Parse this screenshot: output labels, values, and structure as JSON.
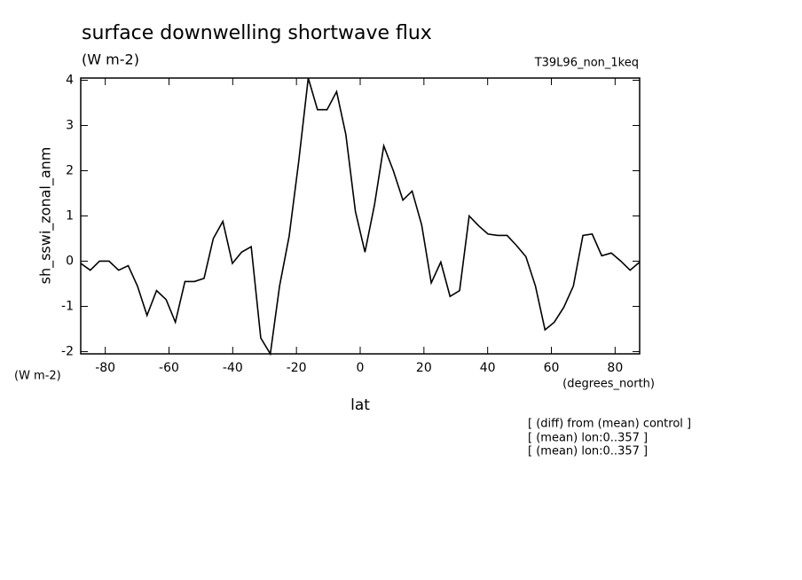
{
  "chart_data": {
    "type": "line",
    "title": "surface downwelling shortwave flux",
    "units": "(W m-2)",
    "run_label": "T39L96_non_1keq",
    "y_label": "sh_sswi_zonal_anm",
    "y_units": "(W m-2)",
    "x_label": "lat",
    "x_units": "(degrees_north)",
    "notes": [
      "[ (diff) from (mean) control ]",
      "[ (mean) lon:0..357 ]",
      "[ (mean) lon:0..357 ]"
    ],
    "x": [
      -87.7,
      -84.7,
      -81.8,
      -78.8,
      -75.8,
      -72.8,
      -69.9,
      -66.9,
      -63.9,
      -60.9,
      -58.0,
      -55.0,
      -52.0,
      -49.0,
      -46.1,
      -43.1,
      -40.1,
      -37.2,
      -34.2,
      -31.2,
      -28.2,
      -25.3,
      -22.3,
      -19.3,
      -16.3,
      -13.4,
      -10.4,
      -7.4,
      -4.5,
      -1.5,
      1.5,
      4.5,
      7.4,
      10.4,
      13.4,
      16.3,
      19.3,
      22.3,
      25.3,
      28.2,
      31.2,
      34.2,
      37.2,
      40.1,
      43.1,
      46.1,
      49.0,
      52.0,
      55.0,
      58.0,
      60.9,
      63.9,
      66.9,
      69.9,
      72.8,
      75.8,
      78.8,
      81.8,
      84.7,
      87.7
    ],
    "series": [
      {
        "name": "sh_sswi_zonal_anm",
        "color": "#000000",
        "values": [
          -0.05,
          -0.2,
          0,
          0,
          -0.2,
          -0.1,
          -0.55,
          -1.2,
          -0.65,
          -0.85,
          -1.35,
          -0.45,
          -0.45,
          -0.38,
          0.5,
          0.88,
          -0.05,
          0.2,
          0.32,
          -1.7,
          -2.05,
          -0.55,
          0.55,
          2.2,
          4.05,
          3.35,
          3.35,
          3.75,
          2.8,
          1.1,
          0.2,
          1.25,
          2.55,
          2.0,
          1.35,
          1.55,
          0.8,
          -0.48,
          -0.02,
          -0.78,
          -0.65,
          1.0,
          0.78,
          0.6,
          0.57,
          0.57,
          0.35,
          0.1,
          -0.55,
          -1.52,
          -1.35,
          -1.02,
          -0.55,
          0.57,
          0.6,
          0.12,
          0.18,
          0.0,
          -0.2,
          -0.02
        ]
      }
    ],
    "xlim": [
      -87.7,
      87.7
    ],
    "xticks": [
      -80,
      -60,
      -40,
      -20,
      0,
      20,
      40,
      60,
      80
    ],
    "ylim": [
      -2.05,
      4.05
    ],
    "yticks": [
      -2,
      -1,
      0,
      1,
      2,
      3,
      4
    ]
  }
}
